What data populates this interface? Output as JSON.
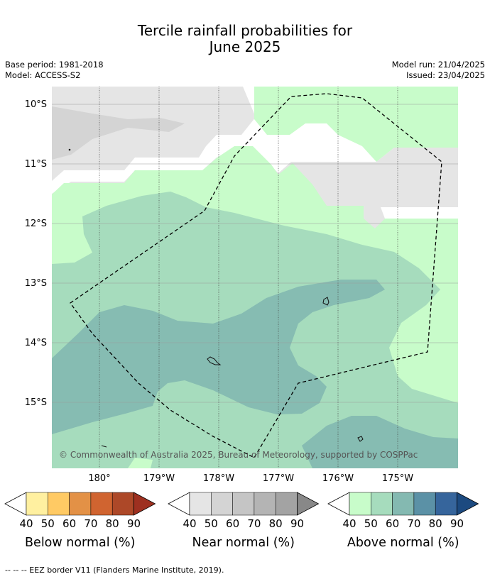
{
  "title_line1": "Tercile rainfall probabilities for",
  "title_line2": "June 2025",
  "base_period": "Base period: 1981-2018",
  "model": "Model: ACCESS-S2",
  "model_run": "Model run: 21/04/2025",
  "issued": "Issued: 23/04/2025",
  "copyright": "© Commonwealth of Australia 2025, Bureau of Meteorology, supported by COSPPac",
  "lat_labels": [
    "10°S",
    "11°S",
    "12°S",
    "13°S",
    "14°S",
    "15°S"
  ],
  "lon_labels": [
    "180°",
    "179°W",
    "178°W",
    "177°W",
    "176°W",
    "175°W"
  ],
  "colorbars": [
    {
      "title": "Below normal (%)",
      "ticks": [
        "40",
        "50",
        "60",
        "70",
        "80",
        "90"
      ],
      "colors": [
        "#ffffff",
        "#fff0a0",
        "#ffca64",
        "#e39146",
        "#d06430",
        "#ad4828",
        "#9e3020"
      ]
    },
    {
      "title": "Near normal (%)",
      "ticks": [
        "40",
        "50",
        "60",
        "70",
        "80",
        "90"
      ],
      "colors": [
        "#ffffff",
        "#e5e5e5",
        "#d4d4d4",
        "#c5c5c5",
        "#b4b4b4",
        "#a3a3a3",
        "#888888"
      ]
    },
    {
      "title": "Above normal (%)",
      "ticks": [
        "40",
        "50",
        "60",
        "70",
        "80",
        "90"
      ],
      "colors": [
        "#ffffff",
        "#c8fcca",
        "#a6dcbd",
        "#84b9b1",
        "#5b91a6",
        "#36659c",
        "#1c4a80"
      ]
    }
  ],
  "footer": "-- -- -- EEZ border V11 (Flanders Marine Institute, 2019)."
}
